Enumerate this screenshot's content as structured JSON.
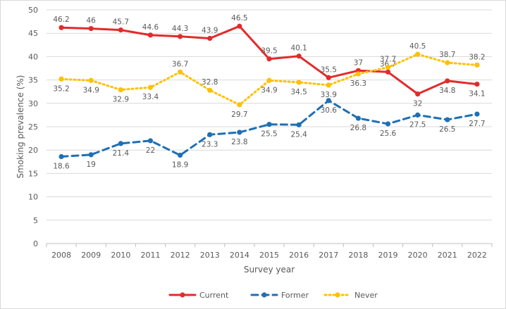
{
  "chart_data": {
    "type": "line",
    "xlabel": "Survey year",
    "ylabel": "Smoking prevalence (%)",
    "ylim": [
      0,
      50
    ],
    "yticks": [
      0,
      5,
      10,
      15,
      20,
      25,
      30,
      35,
      40,
      45,
      50
    ],
    "grid": "horizontal",
    "legend_position": "bottom",
    "categories": [
      "2008",
      "2009",
      "2010",
      "2011",
      "2012",
      "2013",
      "2014",
      "2015",
      "2016",
      "2017",
      "2018",
      "2019",
      "2020",
      "2021",
      "2022"
    ],
    "series": [
      {
        "name": "Current",
        "color": "#e32b2b",
        "style": "solid",
        "values": [
          46.2,
          46,
          45.7,
          44.6,
          44.3,
          43.9,
          46.5,
          39.5,
          40.1,
          35.5,
          37,
          36.7,
          32,
          34.8,
          34.1
        ],
        "labels": [
          "46.2",
          "46",
          "45.7",
          "44.6",
          "44.3",
          "43.9",
          "46.5",
          "39.5",
          "40.1",
          "35.5",
          "37",
          "36.7",
          "32",
          "34.8",
          "34.1"
        ]
      },
      {
        "name": "Former",
        "color": "#1f6fb4",
        "style": "dashed",
        "values": [
          18.6,
          19,
          21.4,
          22,
          18.9,
          23.3,
          23.8,
          25.5,
          25.4,
          30.6,
          26.8,
          25.6,
          27.5,
          26.5,
          27.7
        ],
        "labels": [
          "18.6",
          "19",
          "21.4",
          "22",
          "18.9",
          "23.3",
          "23.8",
          "25.5",
          "25.4",
          "30.6",
          "26.8",
          "25.6",
          "27.5",
          "26.5",
          "27.7"
        ]
      },
      {
        "name": "Never",
        "color": "#ffc000",
        "style": "dotted",
        "values": [
          35.2,
          34.9,
          32.9,
          33.4,
          36.7,
          32.8,
          29.7,
          34.9,
          34.5,
          33.9,
          36.3,
          37.7,
          40.5,
          38.7,
          38.2
        ],
        "labels": [
          "35.2",
          "34.9",
          "32.9",
          "33.4",
          "36.7",
          "32.8",
          "29.7",
          "34.9",
          "34.5",
          "33.9",
          "36.3",
          "37.7",
          "40.5",
          "38.7",
          "38.2"
        ]
      }
    ]
  }
}
